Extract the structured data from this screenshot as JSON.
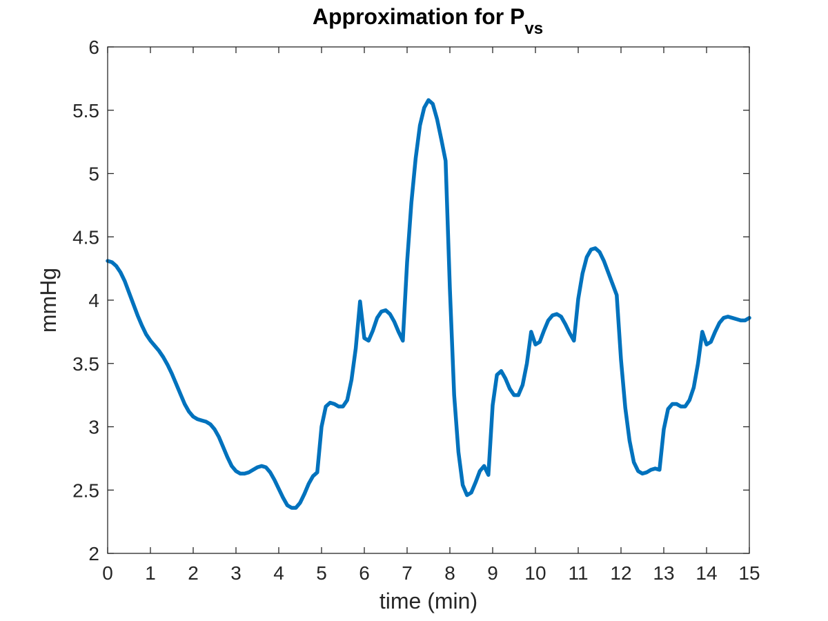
{
  "chart_data": {
    "type": "line",
    "title": "Approximation for P",
    "title_subscript": "vs",
    "xlabel": "time (min)",
    "ylabel": "mmHg",
    "xlim": [
      0,
      15
    ],
    "ylim": [
      2,
      6
    ],
    "xticks": [
      0,
      1,
      2,
      3,
      4,
      5,
      6,
      7,
      8,
      9,
      10,
      11,
      12,
      13,
      14,
      15
    ],
    "xtick_labels": [
      "0",
      "1",
      "2",
      "3",
      "4",
      "5",
      "6",
      "7",
      "8",
      "9",
      "10",
      "11",
      "12",
      "13",
      "14",
      "15"
    ],
    "yticks": [
      2,
      2.5,
      3,
      3.5,
      4,
      4.5,
      5,
      5.5,
      6
    ],
    "ytick_labels": [
      "2",
      "2.5",
      "3",
      "3.5",
      "4",
      "4.5",
      "5",
      "5.5",
      "6"
    ],
    "grid": false,
    "box": true,
    "series": [
      {
        "color": "#0072BD",
        "points": [
          [
            0,
            4.31
          ],
          [
            0.1,
            4.3
          ],
          [
            0.2,
            4.27
          ],
          [
            0.3,
            4.22
          ],
          [
            0.4,
            4.15
          ],
          [
            0.5,
            4.06
          ],
          [
            0.6,
            3.97
          ],
          [
            0.7,
            3.88
          ],
          [
            0.8,
            3.8
          ],
          [
            0.9,
            3.73
          ],
          [
            1.0,
            3.68
          ],
          [
            1.1,
            3.64
          ],
          [
            1.2,
            3.6
          ],
          [
            1.3,
            3.55
          ],
          [
            1.4,
            3.49
          ],
          [
            1.5,
            3.42
          ],
          [
            1.6,
            3.34
          ],
          [
            1.7,
            3.26
          ],
          [
            1.8,
            3.18
          ],
          [
            1.9,
            3.12
          ],
          [
            2.0,
            3.08
          ],
          [
            2.1,
            3.06
          ],
          [
            2.2,
            3.05
          ],
          [
            2.3,
            3.04
          ],
          [
            2.4,
            3.02
          ],
          [
            2.5,
            2.98
          ],
          [
            2.6,
            2.92
          ],
          [
            2.7,
            2.84
          ],
          [
            2.8,
            2.76
          ],
          [
            2.9,
            2.69
          ],
          [
            3.0,
            2.65
          ],
          [
            3.1,
            2.63
          ],
          [
            3.2,
            2.63
          ],
          [
            3.3,
            2.64
          ],
          [
            3.4,
            2.66
          ],
          [
            3.5,
            2.68
          ],
          [
            3.6,
            2.69
          ],
          [
            3.7,
            2.68
          ],
          [
            3.8,
            2.64
          ],
          [
            3.9,
            2.58
          ],
          [
            4.0,
            2.51
          ],
          [
            4.1,
            2.44
          ],
          [
            4.2,
            2.38
          ],
          [
            4.3,
            2.36
          ],
          [
            4.4,
            2.36
          ],
          [
            4.5,
            2.4
          ],
          [
            4.6,
            2.47
          ],
          [
            4.7,
            2.55
          ],
          [
            4.8,
            2.61
          ],
          [
            4.9,
            2.64
          ],
          [
            5.0,
            3.0
          ],
          [
            5.1,
            3.16
          ],
          [
            5.2,
            3.19
          ],
          [
            5.3,
            3.18
          ],
          [
            5.4,
            3.16
          ],
          [
            5.5,
            3.16
          ],
          [
            5.6,
            3.21
          ],
          [
            5.7,
            3.37
          ],
          [
            5.8,
            3.62
          ],
          [
            5.9,
            3.99
          ],
          [
            6.0,
            3.7
          ],
          [
            6.1,
            3.68
          ],
          [
            6.2,
            3.76
          ],
          [
            6.3,
            3.86
          ],
          [
            6.4,
            3.91
          ],
          [
            6.5,
            3.92
          ],
          [
            6.6,
            3.89
          ],
          [
            6.7,
            3.83
          ],
          [
            6.8,
            3.75
          ],
          [
            6.9,
            3.68
          ],
          [
            7.0,
            4.3
          ],
          [
            7.1,
            4.77
          ],
          [
            7.2,
            5.12
          ],
          [
            7.3,
            5.38
          ],
          [
            7.4,
            5.52
          ],
          [
            7.5,
            5.58
          ],
          [
            7.6,
            5.55
          ],
          [
            7.7,
            5.43
          ],
          [
            7.8,
            5.27
          ],
          [
            7.9,
            5.1
          ],
          [
            8.0,
            4.09
          ],
          [
            8.1,
            3.25
          ],
          [
            8.2,
            2.8
          ],
          [
            8.3,
            2.54
          ],
          [
            8.4,
            2.46
          ],
          [
            8.5,
            2.48
          ],
          [
            8.6,
            2.56
          ],
          [
            8.7,
            2.65
          ],
          [
            8.8,
            2.69
          ],
          [
            8.9,
            2.62
          ],
          [
            9.0,
            3.17
          ],
          [
            9.1,
            3.41
          ],
          [
            9.2,
            3.44
          ],
          [
            9.3,
            3.38
          ],
          [
            9.4,
            3.3
          ],
          [
            9.5,
            3.25
          ],
          [
            9.6,
            3.25
          ],
          [
            9.7,
            3.33
          ],
          [
            9.8,
            3.5
          ],
          [
            9.9,
            3.75
          ],
          [
            10.0,
            3.65
          ],
          [
            10.1,
            3.67
          ],
          [
            10.2,
            3.76
          ],
          [
            10.3,
            3.84
          ],
          [
            10.4,
            3.88
          ],
          [
            10.5,
            3.89
          ],
          [
            10.6,
            3.87
          ],
          [
            10.7,
            3.81
          ],
          [
            10.8,
            3.74
          ],
          [
            10.9,
            3.68
          ],
          [
            11.0,
            4.01
          ],
          [
            11.1,
            4.21
          ],
          [
            11.2,
            4.34
          ],
          [
            11.3,
            4.4
          ],
          [
            11.4,
            4.41
          ],
          [
            11.5,
            4.38
          ],
          [
            11.6,
            4.31
          ],
          [
            11.7,
            4.22
          ],
          [
            11.8,
            4.13
          ],
          [
            11.9,
            4.04
          ],
          [
            12.0,
            3.53
          ],
          [
            12.1,
            3.15
          ],
          [
            12.2,
            2.89
          ],
          [
            12.3,
            2.72
          ],
          [
            12.4,
            2.65
          ],
          [
            12.5,
            2.63
          ],
          [
            12.6,
            2.64
          ],
          [
            12.7,
            2.66
          ],
          [
            12.8,
            2.67
          ],
          [
            12.9,
            2.66
          ],
          [
            13.0,
            2.98
          ],
          [
            13.1,
            3.14
          ],
          [
            13.2,
            3.18
          ],
          [
            13.3,
            3.18
          ],
          [
            13.4,
            3.16
          ],
          [
            13.5,
            3.16
          ],
          [
            13.6,
            3.21
          ],
          [
            13.7,
            3.31
          ],
          [
            13.8,
            3.5
          ],
          [
            13.9,
            3.75
          ],
          [
            14.0,
            3.65
          ],
          [
            14.1,
            3.67
          ],
          [
            14.2,
            3.75
          ],
          [
            14.3,
            3.82
          ],
          [
            14.4,
            3.86
          ],
          [
            14.5,
            3.87
          ],
          [
            14.6,
            3.86
          ],
          [
            14.7,
            3.85
          ],
          [
            14.8,
            3.84
          ],
          [
            14.9,
            3.84
          ],
          [
            15.0,
            3.86
          ]
        ]
      }
    ]
  }
}
